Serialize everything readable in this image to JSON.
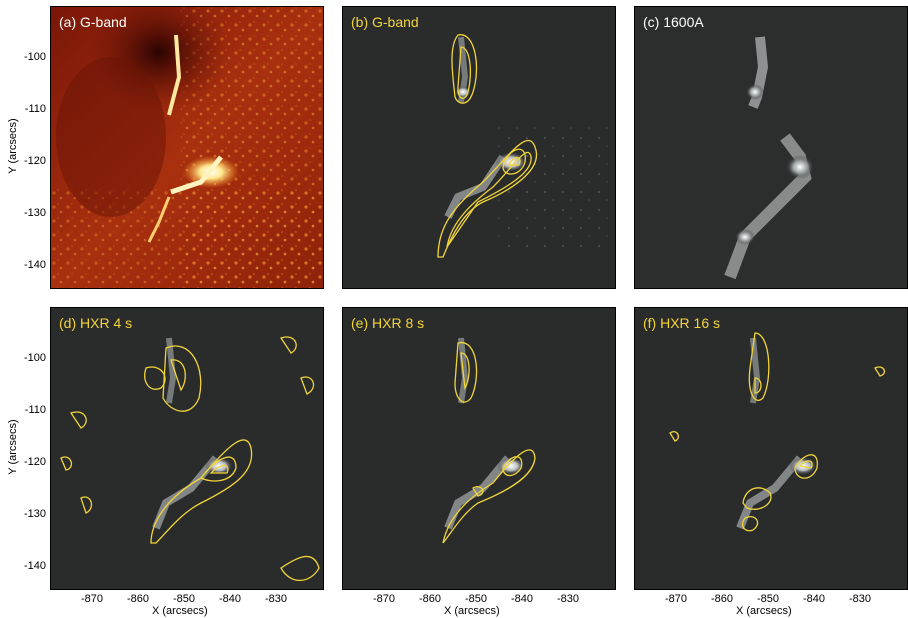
{
  "panels": [
    {
      "label": "(a) G-band",
      "label_color": "#ffffff"
    },
    {
      "label": "(b) G-band",
      "label_color": "#f2d43a"
    },
    {
      "label": "(c) 1600A",
      "label_color": "#ffffff"
    },
    {
      "label": "(d) HXR 4 s",
      "label_color": "#f2d43a"
    },
    {
      "label": "(e) HXR 8 s",
      "label_color": "#f2d43a"
    },
    {
      "label": "(f) HXR 16 s",
      "label_color": "#f2d43a"
    }
  ],
  "axes": {
    "ylabel": "Y (arcsecs)",
    "xlabel": "X (arcsecs)",
    "yticks": [
      "-100",
      "-110",
      "-120",
      "-130",
      "-140"
    ],
    "xticks": [
      "-870",
      "-860",
      "-850",
      "-840",
      "-830"
    ]
  },
  "colors": {
    "contour": "#f2d43a",
    "gband_red": "#8a1a0c",
    "gband_bright": "#ffd060",
    "gray_bg": "#2a2c2c"
  }
}
